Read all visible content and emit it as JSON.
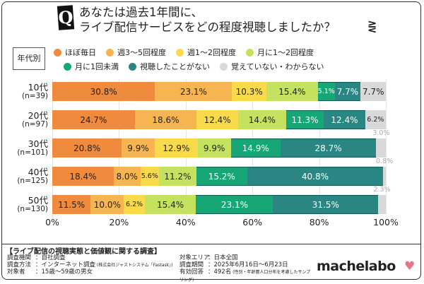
{
  "header": {
    "q_mark": "Q",
    "title_line1": "あなたは過去1年間に、",
    "title_line2": "ライブ配信サービスをどの程度視聴しましたか？"
  },
  "group_label": "年代別",
  "chart_data": {
    "type": "bar",
    "orientation": "horizontal",
    "stacked": true,
    "title": "あなたは過去1年間に、ライブ配信サービスをどの程度視聴しましたか？",
    "categories": [
      {
        "label": "10代",
        "n": "(n=39)"
      },
      {
        "label": "20代",
        "n": "(n=97)"
      },
      {
        "label": "30代",
        "n": "(n=101)"
      },
      {
        "label": "40代",
        "n": "(n=125)"
      },
      {
        "label": "50代",
        "n": "(n=130)"
      }
    ],
    "series": [
      {
        "name": "ほぼ毎日",
        "color": "#f08a3c",
        "values": [
          30.8,
          24.7,
          20.8,
          18.4,
          11.5
        ]
      },
      {
        "name": "週3～5回程度",
        "color": "#f7b552",
        "values": [
          23.1,
          18.6,
          9.9,
          8.0,
          10.0
        ]
      },
      {
        "name": "週1～2回程度",
        "color": "#f9da4c",
        "values": [
          10.3,
          12.4,
          12.9,
          5.6,
          6.2
        ]
      },
      {
        "name": "月に1～2回程度",
        "color": "#c4e25e",
        "values": [
          15.4,
          14.4,
          9.9,
          11.2,
          15.4
        ]
      },
      {
        "name": "月に1回未満",
        "color": "#17a676",
        "values": [
          5.1,
          11.3,
          14.9,
          15.2,
          23.1
        ]
      },
      {
        "name": "視聴したことがない",
        "color": "#2a8683",
        "values": [
          7.7,
          12.4,
          28.7,
          40.8,
          31.5
        ]
      },
      {
        "name": "覚えていない・わからない",
        "color": "#d9d9d9",
        "values": [
          7.7,
          6.2,
          3.0,
          0.8,
          2.3
        ]
      }
    ],
    "xlim": [
      0,
      100
    ],
    "xticks": [
      "0%",
      "20%",
      "40%",
      "60%",
      "80%",
      "100%"
    ],
    "grid": true,
    "legend_position": "top"
  },
  "footer": {
    "survey_title": "【ライブ配信の視聴実態と価値観に関する調査】",
    "rows": [
      {
        "key": "調査機関",
        "value": "：自社調査"
      },
      {
        "key": "調査方法",
        "value": "：インターネット調査",
        "note": "(株式会社ジャストシステム「Fastask」)"
      },
      {
        "key": "対象者",
        "value": "：15歳～59歳の男女"
      },
      {
        "key": "対象エリア",
        "value": "：日本全国"
      },
      {
        "key": "調査期間",
        "value": "：2025年6月16日～6月23日"
      },
      {
        "key": "有効回答",
        "value": "：492名",
        "note": "(性別・年齢層人口分布を考慮したサンプリング)"
      }
    ],
    "logo": "machelabo"
  }
}
